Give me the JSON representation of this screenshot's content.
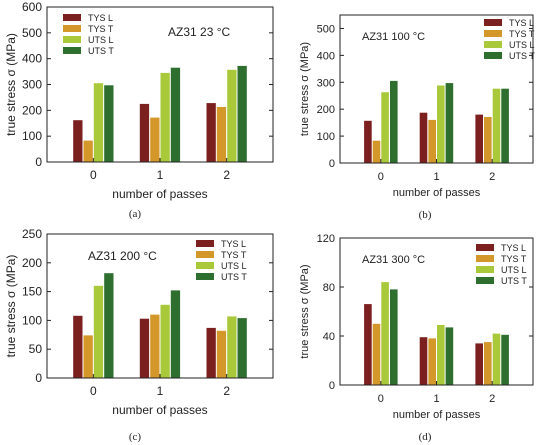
{
  "figure": {
    "panel_labels": [
      "(a)",
      "(b)",
      "(c)",
      "(d)"
    ]
  },
  "chart_data": [
    {
      "type": "bar",
      "annotation": "AZ31 23 °C",
      "xlabel": "number of passes",
      "ylabel": "true stress σ (MPa)",
      "categories": [
        "0",
        "1",
        "2"
      ],
      "ylim": [
        0,
        600
      ],
      "yticks": [
        0,
        100,
        200,
        300,
        400,
        500,
        600
      ],
      "legend_position": "top-left",
      "series": [
        {
          "name": "TYS L",
          "color": "#7b1f1f",
          "values": [
            162,
            225,
            228
          ]
        },
        {
          "name": "TYS T",
          "color": "#d4972a",
          "values": [
            83,
            172,
            213
          ]
        },
        {
          "name": "UTS L",
          "color": "#a9c93a",
          "values": [
            305,
            345,
            357
          ]
        },
        {
          "name": "UTS T",
          "color": "#2e6e2e",
          "values": [
            297,
            365,
            372
          ]
        }
      ]
    },
    {
      "type": "bar",
      "annotation": "AZ31 100 °C",
      "xlabel": "number of passes",
      "ylabel": "true stress σ (MPa)",
      "categories": [
        "0",
        "1",
        "2"
      ],
      "ylim": [
        0,
        550
      ],
      "yticks": [
        0,
        100,
        200,
        300,
        400,
        500
      ],
      "legend_position": "top-right",
      "series": [
        {
          "name": "TYS L",
          "color": "#7b1f1f",
          "values": [
            157,
            187,
            180
          ]
        },
        {
          "name": "TYS T",
          "color": "#d4972a",
          "values": [
            83,
            160,
            171
          ]
        },
        {
          "name": "UTS L",
          "color": "#a9c93a",
          "values": [
            263,
            288,
            276
          ]
        },
        {
          "name": "UTS T",
          "color": "#2e6e2e",
          "values": [
            305,
            297,
            276
          ]
        }
      ]
    },
    {
      "type": "bar",
      "annotation": "AZ31 200 °C",
      "xlabel": "number of passes",
      "ylabel": "true stress σ (MPa)",
      "categories": [
        "0",
        "1",
        "2"
      ],
      "ylim": [
        0,
        250
      ],
      "yticks": [
        0,
        50,
        100,
        150,
        200,
        250
      ],
      "legend_position": "top-right",
      "series": [
        {
          "name": "TYS L",
          "color": "#7b1f1f",
          "values": [
            108,
            103,
            87
          ]
        },
        {
          "name": "TYS T",
          "color": "#d4972a",
          "values": [
            74,
            110,
            82
          ]
        },
        {
          "name": "UTS L",
          "color": "#a9c93a",
          "values": [
            160,
            127,
            107
          ]
        },
        {
          "name": "UTS T",
          "color": "#2e6e2e",
          "values": [
            182,
            152,
            104
          ]
        }
      ]
    },
    {
      "type": "bar",
      "annotation": "AZ31 300 °C",
      "xlabel": "number of passes",
      "ylabel": "true stress σ (MPa)",
      "categories": [
        "0",
        "1",
        "2"
      ],
      "ylim": [
        0,
        120
      ],
      "yticks": [
        0,
        40,
        80,
        120
      ],
      "legend_position": "top-right",
      "series": [
        {
          "name": "TYS L",
          "color": "#7b1f1f",
          "values": [
            66,
            39,
            34
          ]
        },
        {
          "name": "TYS T",
          "color": "#d4972a",
          "values": [
            50,
            38,
            35
          ]
        },
        {
          "name": "UTS L",
          "color": "#a9c93a",
          "values": [
            84,
            49,
            42
          ]
        },
        {
          "name": "UTS T",
          "color": "#2e6e2e",
          "values": [
            78,
            47,
            41
          ]
        }
      ]
    }
  ]
}
